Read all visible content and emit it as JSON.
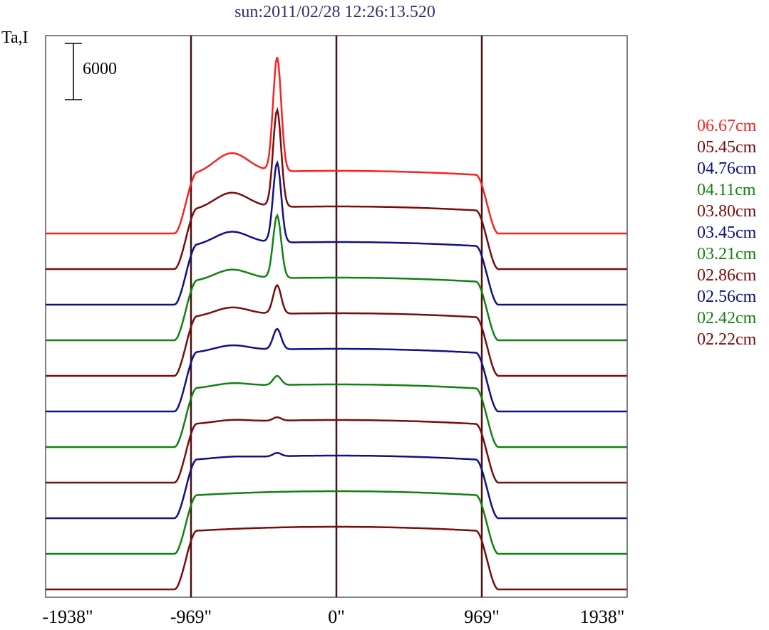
{
  "title": "sun:2011/02/28 12:26:13.520",
  "ylabel": "Ta,I",
  "scale_label": "6000",
  "chart_data": {
    "type": "line",
    "title": "sun:2011/02/28 12:26:13.520",
    "ylabel": "Ta,I",
    "xlabel": "",
    "x_ticks": [
      "-1938\"",
      "-969\"",
      "0\"",
      "969\"",
      "1938\""
    ],
    "x_tick_values": [
      -1938,
      -969,
      0,
      969,
      1938
    ],
    "xlim": [
      -1938,
      1938
    ],
    "vertical_lines": [
      -969,
      0,
      969
    ],
    "scale_bar": 6000,
    "legend": [
      {
        "name": "06.67cm",
        "color": "#ff2020"
      },
      {
        "name": "05.45cm",
        "color": "#7a0c0c"
      },
      {
        "name": "04.76cm",
        "color": "#101088"
      },
      {
        "name": "04.11cm",
        "color": "#108210"
      },
      {
        "name": "03.80cm",
        "color": "#7a0c0c"
      },
      {
        "name": "03.45cm",
        "color": "#101088"
      },
      {
        "name": "03.21cm",
        "color": "#108210"
      },
      {
        "name": "02.86cm",
        "color": "#7a0c0c"
      },
      {
        "name": "02.56cm",
        "color": "#101088"
      },
      {
        "name": "02.42cm",
        "color": "#108210"
      },
      {
        "name": "02.22cm",
        "color": "#7a0c0c"
      }
    ],
    "series": [
      {
        "name": "06.67cm",
        "color": "#ff2020",
        "peak": 1.0,
        "hump": 0.35
      },
      {
        "name": "05.45cm",
        "color": "#7a0c0c",
        "peak": 0.85,
        "hump": 0.28
      },
      {
        "name": "04.76cm",
        "color": "#101088",
        "peak": 0.7,
        "hump": 0.22
      },
      {
        "name": "04.11cm",
        "color": "#108210",
        "peak": 0.55,
        "hump": 0.18
      },
      {
        "name": "03.80cm",
        "color": "#7a0c0c",
        "peak": 0.25,
        "hump": 0.14
      },
      {
        "name": "03.45cm",
        "color": "#101088",
        "peak": 0.18,
        "hump": 0.1
      },
      {
        "name": "03.21cm",
        "color": "#108210",
        "peak": 0.08,
        "hump": 0.06
      },
      {
        "name": "02.86cm",
        "color": "#7a0c0c",
        "peak": 0.03,
        "hump": 0.04
      },
      {
        "name": "02.56cm",
        "color": "#101088",
        "peak": 0.03,
        "hump": 0.02
      },
      {
        "name": "02.42cm",
        "color": "#108210",
        "peak": 0.0,
        "hump": 0.0
      },
      {
        "name": "02.22cm",
        "color": "#7a0c0c",
        "peak": 0.0,
        "hump": 0.0
      }
    ]
  }
}
